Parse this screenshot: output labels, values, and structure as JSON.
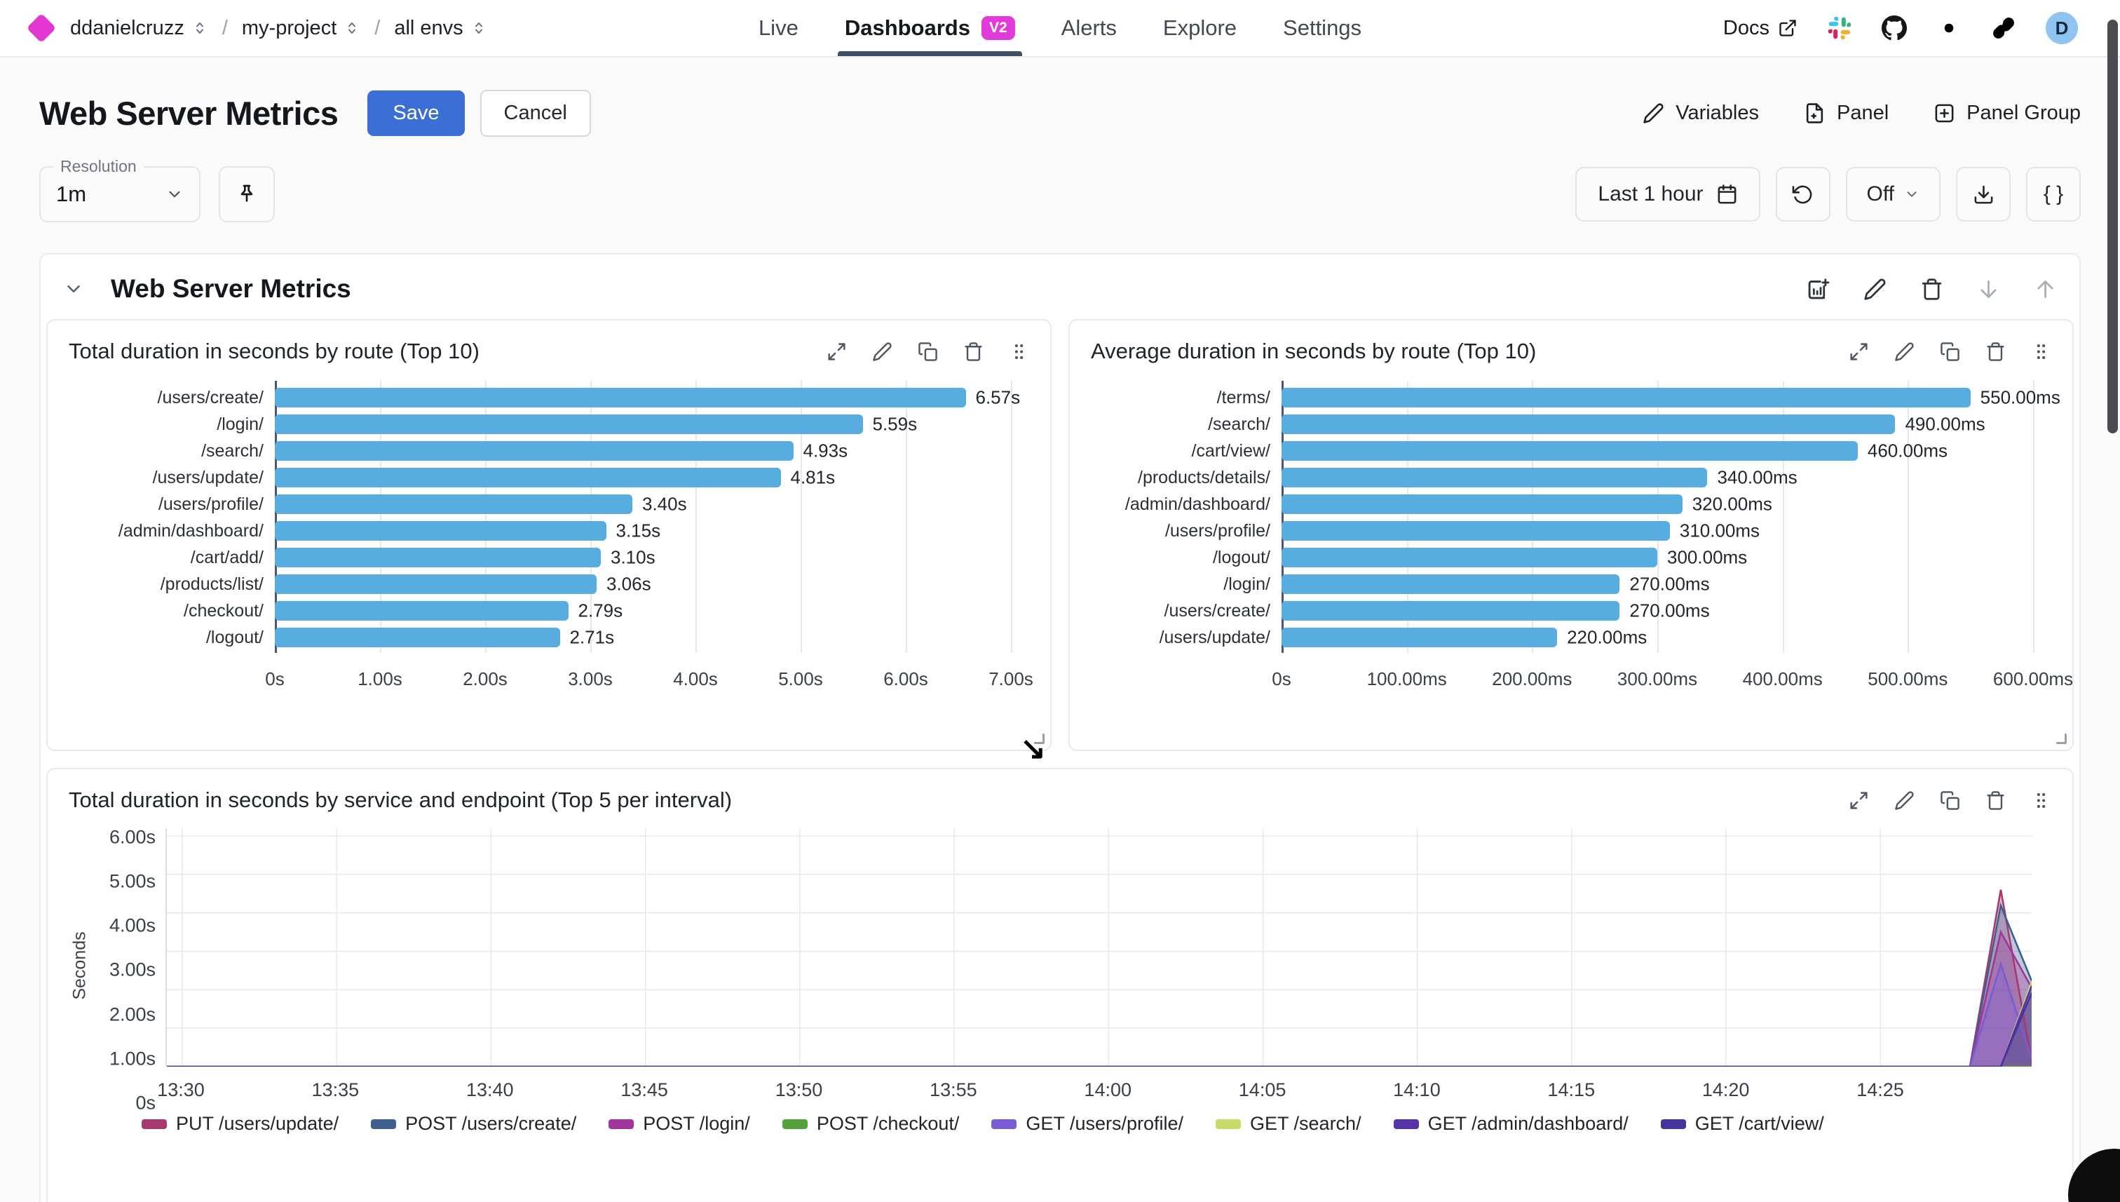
{
  "header": {
    "breadcrumbs": [
      {
        "label": "ddanielcruzz"
      },
      {
        "label": "my-project"
      },
      {
        "label": "all envs"
      }
    ],
    "nav": [
      {
        "label": "Live"
      },
      {
        "label": "Dashboards",
        "badge": "V2"
      },
      {
        "label": "Alerts"
      },
      {
        "label": "Explore"
      },
      {
        "label": "Settings"
      }
    ],
    "docs_label": "Docs",
    "avatar_letter": "D"
  },
  "toolbar": {
    "title": "Web Server Metrics",
    "save_label": "Save",
    "cancel_label": "Cancel",
    "variables_label": "Variables",
    "panel_label": "Panel",
    "panel_group_label": "Panel Group"
  },
  "controls": {
    "resolution_label": "Resolution",
    "resolution_value": "1m",
    "time_range_label": "Last 1 hour",
    "refresh_off_label": "Off",
    "braces_label": "{ }"
  },
  "section": {
    "title": "Web Server Metrics"
  },
  "colors": {
    "accent_blue": "#3C6FD6",
    "bar_blue": "#57ACE0",
    "badge_magenta": "#E13BDC",
    "logo_magenta": "#E335D2"
  },
  "chart_data": [
    {
      "type": "bar",
      "orientation": "horizontal",
      "title": "Total duration in seconds by route (Top 10)",
      "unit": "s",
      "categories": [
        "/users/create/",
        "/login/",
        "/search/",
        "/users/update/",
        "/users/profile/",
        "/admin/dashboard/",
        "/cart/add/",
        "/products/list/",
        "/checkout/",
        "/logout/"
      ],
      "values": [
        6.57,
        5.59,
        4.93,
        4.81,
        3.4,
        3.15,
        3.1,
        3.06,
        2.79,
        2.71
      ],
      "value_labels": [
        "6.57s",
        "5.59s",
        "4.93s",
        "4.81s",
        "3.40s",
        "3.15s",
        "3.10s",
        "3.06s",
        "2.79s",
        "2.71s"
      ],
      "x_ticks": [
        "0s",
        "1.00s",
        "2.00s",
        "3.00s",
        "4.00s",
        "5.00s",
        "6.00s",
        "7.00s"
      ],
      "xlim": [
        0,
        7
      ],
      "bar_color": "#57ACE0",
      "grid": true
    },
    {
      "type": "bar",
      "orientation": "horizontal",
      "title": "Average duration in seconds by route (Top 10)",
      "unit": "ms",
      "categories": [
        "/terms/",
        "/search/",
        "/cart/view/",
        "/products/details/",
        "/admin/dashboard/",
        "/users/profile/",
        "/logout/",
        "/login/",
        "/users/create/",
        "/users/update/"
      ],
      "values": [
        550,
        490,
        460,
        340,
        320,
        310,
        300,
        270,
        270,
        220
      ],
      "value_labels": [
        "550.00ms",
        "490.00ms",
        "460.00ms",
        "340.00ms",
        "320.00ms",
        "310.00ms",
        "300.00ms",
        "270.00ms",
        "270.00ms",
        "220.00ms"
      ],
      "x_ticks": [
        "0s",
        "100.00ms",
        "200.00ms",
        "300.00ms",
        "400.00ms",
        "500.00ms",
        "600.00ms"
      ],
      "xlim": [
        0,
        600
      ],
      "bar_color": "#57ACE0",
      "grid": true
    },
    {
      "type": "area",
      "title": "Total duration in seconds by service and endpoint (Top 5 per interval)",
      "ylabel": "Seconds",
      "y_tick_labels": [
        "6.00s",
        "5.00s",
        "4.00s",
        "3.00s",
        "2.00s",
        "1.00s",
        "0s"
      ],
      "y_tick_values": [
        6,
        5,
        4,
        3,
        2,
        1,
        0
      ],
      "ylim": [
        0,
        6.2
      ],
      "x_tick_labels": [
        "13:30",
        "13:35",
        "13:40",
        "13:45",
        "13:50",
        "13:55",
        "14:00",
        "14:05",
        "14:10",
        "14:15",
        "14:20",
        "14:25"
      ],
      "x_tick_minutes": [
        0,
        5,
        10,
        15,
        20,
        25,
        30,
        35,
        40,
        45,
        50,
        55
      ],
      "x_domain_minutes": [
        -0.5,
        59.9
      ],
      "grid": true,
      "legend_position": "bottom",
      "series": [
        {
          "name": "PUT /users/update/",
          "color": "#A63A6F",
          "points": [
            [
              -0.5,
              0
            ],
            [
              57.9,
              0
            ],
            [
              58.9,
              4.6
            ],
            [
              59.9,
              0.15
            ]
          ]
        },
        {
          "name": "POST /users/create/",
          "color": "#3E608F",
          "points": [
            [
              -0.5,
              0
            ],
            [
              57.9,
              0
            ],
            [
              58.9,
              4.19
            ],
            [
              59.9,
              2.23
            ]
          ]
        },
        {
          "name": "POST /login/",
          "color": "#A0369B",
          "points": [
            [
              -0.5,
              0
            ],
            [
              57.9,
              0
            ],
            [
              58.9,
              3.5
            ],
            [
              59.9,
              2.05
            ]
          ]
        },
        {
          "name": "POST /checkout/",
          "color": "#55A23C",
          "points": [
            [
              -0.5,
              0
            ],
            [
              59.9,
              0
            ]
          ]
        },
        {
          "name": "GET /users/profile/",
          "color": "#7A5BD6",
          "points": [
            [
              -0.5,
              0
            ],
            [
              57.9,
              0
            ],
            [
              58.9,
              2.67
            ],
            [
              59.9,
              0.2
            ]
          ]
        },
        {
          "name": "GET /search/",
          "color": "#C9D96A",
          "points": [
            [
              -0.5,
              0
            ],
            [
              58.9,
              0
            ],
            [
              59.9,
              2.2
            ]
          ]
        },
        {
          "name": "GET /admin/dashboard/",
          "color": "#5733A8",
          "points": [
            [
              -0.5,
              0
            ],
            [
              58.9,
              0
            ],
            [
              59.9,
              2.1
            ]
          ]
        },
        {
          "name": "GET /cart/view/",
          "color": "#45349C",
          "points": [
            [
              -0.5,
              0
            ],
            [
              58.9,
              0
            ],
            [
              59.9,
              1.92
            ]
          ]
        }
      ]
    }
  ]
}
